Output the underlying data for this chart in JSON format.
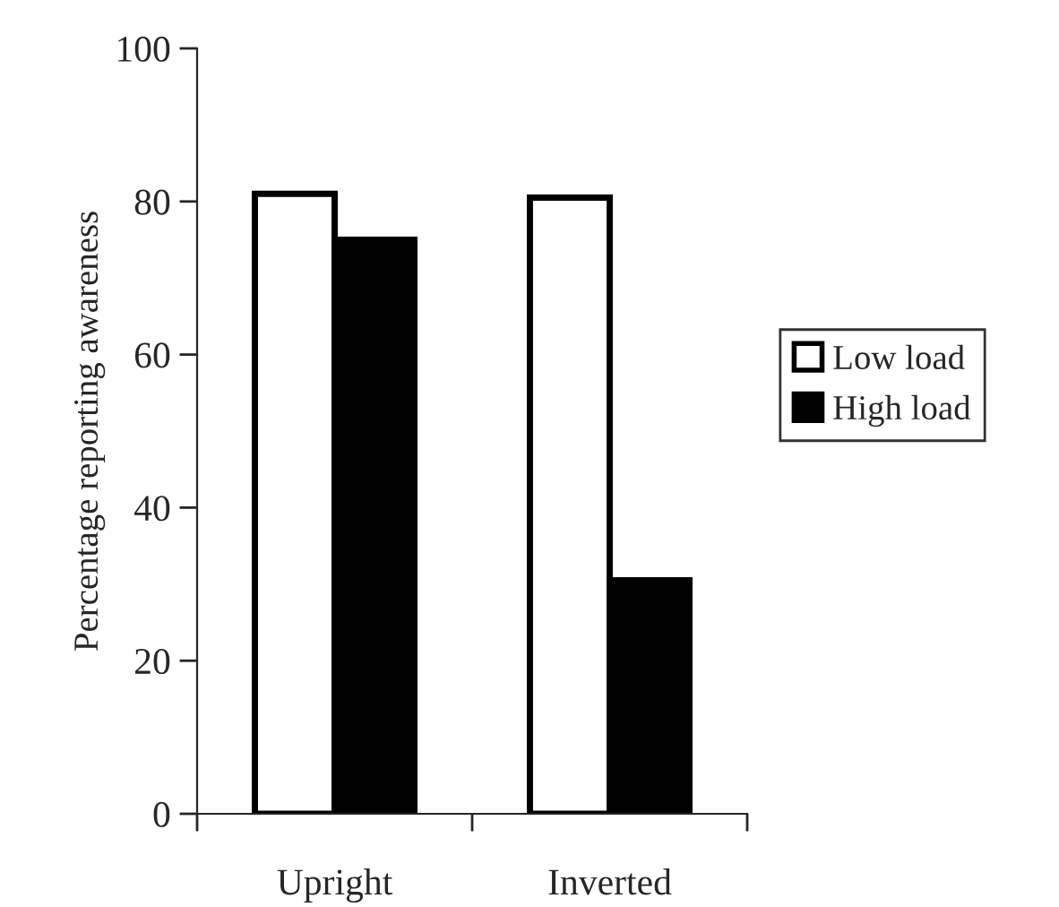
{
  "chart_data": {
    "type": "bar",
    "ylabel": "Percentage reporting awareness",
    "categories": [
      "Upright",
      "Inverted"
    ],
    "series": [
      {
        "name": "Low load",
        "color": "#ffffff",
        "values": [
          81,
          80.5
        ]
      },
      {
        "name": "High load",
        "color": "#000000",
        "values": [
          75,
          30.5
        ]
      }
    ],
    "ylim": [
      0,
      100
    ],
    "yticks": [
      0,
      20,
      40,
      60,
      80,
      100
    ],
    "grid": false,
    "legend": "right"
  }
}
